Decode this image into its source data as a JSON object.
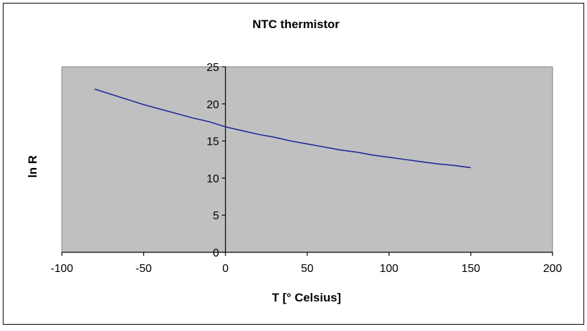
{
  "chart_data": {
    "type": "line",
    "title": "NTC thermistor",
    "xlabel": "T [° Celsius]",
    "ylabel": "ln R",
    "xlim": [
      -100,
      200
    ],
    "ylim": [
      0,
      25
    ],
    "xticks": [
      -100,
      -50,
      0,
      50,
      100,
      150,
      200
    ],
    "yticks": [
      0,
      5,
      10,
      15,
      20,
      25
    ],
    "grid": false,
    "legend": "none",
    "plot_background": "#c0c0c0",
    "line_color": "#1f2a99",
    "series": [
      {
        "x": [
          -80,
          -70,
          -60,
          -50,
          -40,
          -30,
          -20,
          -10,
          0,
          10,
          20,
          30,
          40,
          50,
          60,
          70,
          80,
          90,
          100,
          110,
          120,
          130,
          140,
          150
        ],
        "y": [
          22.0,
          21.3,
          20.6,
          19.9,
          19.3,
          18.7,
          18.1,
          17.6,
          16.9,
          16.4,
          15.9,
          15.5,
          15.0,
          14.6,
          14.2,
          13.8,
          13.5,
          13.1,
          12.8,
          12.5,
          12.2,
          11.9,
          11.7,
          11.4
        ]
      }
    ]
  }
}
